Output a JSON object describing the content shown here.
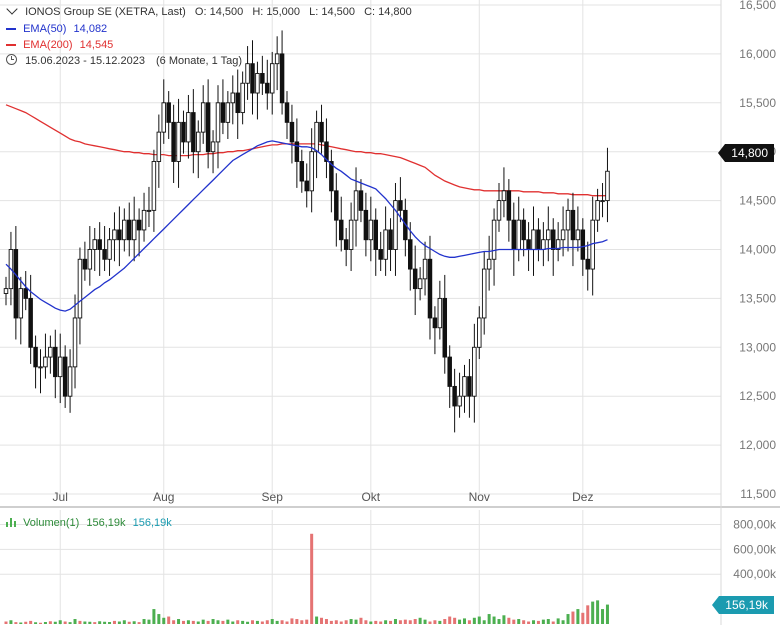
{
  "legend": {
    "title": "IONOS Group SE (XETRA, Last)",
    "open_label": "O:",
    "open": "14,500",
    "high_label": "H:",
    "high": "15,000",
    "low_label": "L:",
    "low": "14,500",
    "close_label": "C:",
    "close": "14,800",
    "ema50_label": "EMA(50)",
    "ema50_value": "14,082",
    "ema200_label": "EMA(200)",
    "ema200_value": "14,545",
    "range": "15.06.2023 - 15.12.2023",
    "period": "(6 Monate, 1 Tag)",
    "volume_label": "Volumen(1)",
    "volume_value1": "156,19k",
    "volume_value2": "156,19k"
  },
  "badges": {
    "price": "14,800",
    "volume": "156,19k"
  },
  "colors": {
    "ema50": "#2233cc",
    "ema200": "#e03030",
    "candle": "#111111",
    "vol_up": "#4caf50",
    "vol_down": "#e57373",
    "price_badge": "#111111",
    "volume_badge": "#1b9bb0",
    "grid": "#e3e3e3",
    "axis_text": "#777777"
  },
  "icons": {
    "clock": "clock-icon",
    "volume": "volume-bars-icon"
  },
  "chart_data": [
    {
      "type": "candlestick",
      "yticks": [
        "11,500",
        "12,000",
        "12,500",
        "13,000",
        "13,500",
        "14,000",
        "14,500",
        "15,000",
        "15,500",
        "16,000",
        "16,500"
      ],
      "ylim": [
        11.5,
        16.5
      ],
      "xticks": [
        {
          "label": "Jul",
          "index": 11
        },
        {
          "label": "Aug",
          "index": 32
        },
        {
          "label": "Sep",
          "index": 54
        },
        {
          "label": "Okt",
          "index": 74
        },
        {
          "label": "Nov",
          "index": 96
        },
        {
          "label": "Dez",
          "index": 117
        }
      ],
      "closes": [
        13.6,
        14.0,
        13.3,
        13.6,
        13.5,
        13.0,
        12.8,
        12.8,
        12.9,
        13.0,
        12.7,
        12.9,
        12.5,
        12.8,
        13.3,
        13.9,
        13.8,
        14.0,
        14.1,
        14.0,
        13.9,
        14.1,
        14.2,
        14.1,
        14.3,
        14.1,
        14.3,
        14.2,
        14.4,
        14.4,
        14.9,
        15.2,
        15.5,
        15.3,
        14.9,
        15.3,
        15.1,
        15.4,
        15.0,
        15.2,
        15.5,
        15.0,
        15.1,
        15.5,
        15.3,
        15.5,
        15.6,
        15.4,
        15.7,
        15.9,
        15.6,
        15.8,
        15.7,
        15.6,
        15.9,
        16.0,
        15.5,
        15.3,
        15.1,
        14.9,
        14.7,
        14.6,
        15.0,
        15.3,
        15.1,
        14.9,
        14.6,
        14.3,
        14.1,
        14.0,
        14.3,
        14.6,
        14.4,
        14.1,
        14.3,
        14.0,
        13.9,
        14.2,
        14.0,
        14.5,
        14.4,
        14.1,
        13.8,
        13.6,
        13.7,
        13.9,
        13.3,
        13.2,
        13.5,
        12.9,
        12.6,
        12.4,
        12.5,
        12.7,
        12.5,
        13.0,
        13.3,
        13.8,
        13.9,
        14.3,
        14.5,
        14.6,
        14.3,
        14.0,
        14.3,
        14.1,
        14.0,
        14.2,
        14.0,
        14.1,
        14.2,
        14.0,
        14.1,
        14.2,
        14.4,
        14.1,
        14.2,
        13.9,
        13.8,
        14.3,
        14.5,
        14.5,
        14.8
      ],
      "series": [
        {
          "name": "EMA(50)",
          "values": [
            13.85,
            13.8,
            13.74,
            13.68,
            13.62,
            13.57,
            13.53,
            13.49,
            13.46,
            13.43,
            13.4,
            13.38,
            13.37,
            13.39,
            13.43,
            13.47,
            13.51,
            13.55,
            13.59,
            13.62,
            13.66,
            13.69,
            13.73,
            13.77,
            13.81,
            13.86,
            13.91,
            13.96,
            14.01,
            14.06,
            14.11,
            14.16,
            14.21,
            14.26,
            14.31,
            14.36,
            14.41,
            14.46,
            14.51,
            14.56,
            14.61,
            14.66,
            14.71,
            14.76,
            14.81,
            14.86,
            14.91,
            14.94,
            14.97,
            15.0,
            15.03,
            15.06,
            15.08,
            15.1,
            15.11,
            15.1,
            15.09,
            15.08,
            15.07,
            15.06,
            15.05,
            15.05,
            15.04,
            15.01,
            14.97,
            14.92,
            14.87,
            14.83,
            14.8,
            14.76,
            14.72,
            14.7,
            14.68,
            14.66,
            14.64,
            14.62,
            14.57,
            14.52,
            14.46,
            14.4,
            14.33,
            14.26,
            14.19,
            14.13,
            14.08,
            14.04,
            14.01,
            13.98,
            13.95,
            13.93,
            13.92,
            13.92,
            13.93,
            13.94,
            13.95,
            13.96,
            13.97,
            13.98,
            13.98,
            13.99,
            14.0,
            14.0,
            14.0,
            14.0,
            14.0,
            14.0,
            14.0,
            14.0,
            14.0,
            14.0,
            14.01,
            14.01,
            14.01,
            14.02,
            14.02,
            14.02,
            14.02,
            14.03,
            14.04,
            14.06,
            14.07,
            14.08,
            14.1
          ]
        },
        {
          "name": "EMA(200)",
          "values": [
            15.48,
            15.46,
            15.44,
            15.42,
            15.4,
            15.37,
            15.34,
            15.31,
            15.28,
            15.25,
            15.22,
            15.19,
            15.16,
            15.13,
            15.11,
            15.1,
            15.08,
            15.07,
            15.06,
            15.05,
            15.04,
            15.03,
            15.02,
            15.01,
            15.0,
            15.0,
            14.99,
            14.99,
            14.98,
            14.98,
            14.97,
            14.97,
            14.97,
            14.96,
            14.96,
            14.96,
            14.96,
            14.96,
            14.97,
            14.97,
            14.97,
            14.98,
            14.98,
            14.99,
            14.99,
            15.0,
            15.0,
            15.01,
            15.01,
            15.02,
            15.03,
            15.04,
            15.05,
            15.06,
            15.07,
            15.07,
            15.08,
            15.08,
            15.08,
            15.08,
            15.08,
            15.08,
            15.08,
            15.08,
            15.07,
            15.06,
            15.05,
            15.04,
            15.03,
            15.02,
            15.01,
            15.0,
            15.0,
            14.99,
            14.99,
            14.98,
            14.98,
            14.97,
            14.96,
            14.95,
            14.94,
            14.92,
            14.9,
            14.88,
            14.86,
            14.84,
            14.8,
            14.76,
            14.73,
            14.7,
            14.68,
            14.66,
            14.64,
            14.63,
            14.62,
            14.61,
            14.61,
            14.6,
            14.6,
            14.6,
            14.6,
            14.6,
            14.6,
            14.6,
            14.6,
            14.59,
            14.59,
            14.59,
            14.59,
            14.58,
            14.58,
            14.58,
            14.57,
            14.57,
            14.57,
            14.56,
            14.56,
            14.56,
            14.56,
            14.55,
            14.55,
            14.55,
            14.55
          ]
        }
      ]
    },
    {
      "type": "bar",
      "name": "Volumen(1)",
      "yticks": [
        "400,00k",
        "600,00k",
        "800,00k"
      ],
      "ylim": [
        0,
        900
      ],
      "values": [
        20,
        30,
        15,
        12,
        18,
        25,
        14,
        10,
        16,
        22,
        18,
        30,
        20,
        15,
        40,
        25,
        20,
        18,
        15,
        22,
        18,
        16,
        25,
        20,
        30,
        18,
        22,
        15,
        40,
        35,
        120,
        80,
        50,
        60,
        30,
        40,
        25,
        30,
        25,
        20,
        35,
        25,
        40,
        30,
        25,
        35,
        20,
        30,
        25,
        18,
        30,
        25,
        20,
        30,
        40,
        25,
        30,
        20,
        45,
        40,
        30,
        35,
        725,
        60,
        50,
        40,
        25,
        30,
        20,
        30,
        40,
        35,
        50,
        30,
        20,
        25,
        20,
        30,
        25,
        40,
        30,
        35,
        30,
        40,
        50,
        35,
        20,
        30,
        25,
        40,
        60,
        50,
        35,
        45,
        30,
        50,
        60,
        30,
        80,
        60,
        40,
        70,
        50,
        35,
        40,
        30,
        20,
        30,
        25,
        35,
        40,
        20,
        45,
        30,
        80,
        100,
        120,
        90,
        150,
        180,
        190,
        120,
        156
      ],
      "down": [
        1,
        0,
        1,
        0,
        1,
        1,
        0,
        1,
        0,
        1,
        0,
        0,
        1,
        0,
        0,
        1,
        0,
        0,
        1,
        0,
        0,
        0,
        1,
        0,
        0,
        1,
        0,
        1,
        0,
        0,
        0,
        0,
        0,
        1,
        1,
        0,
        1,
        0,
        1,
        0,
        0,
        1,
        0,
        0,
        1,
        0,
        0,
        1,
        0,
        0,
        1,
        0,
        1,
        1,
        0,
        0,
        1,
        1,
        1,
        1,
        1,
        1,
        1,
        0,
        1,
        1,
        1,
        1,
        1,
        1,
        0,
        0,
        1,
        1,
        0,
        1,
        1,
        0,
        1,
        0,
        1,
        1,
        1,
        1,
        0,
        0,
        1,
        1,
        0,
        1,
        1,
        1,
        0,
        0,
        1,
        0,
        0,
        0,
        0,
        0,
        0,
        0,
        1,
        1,
        0,
        1,
        1,
        0,
        1,
        0,
        0,
        1,
        0,
        0,
        0,
        1,
        0,
        1,
        1,
        0,
        0,
        0,
        0
      ]
    }
  ]
}
